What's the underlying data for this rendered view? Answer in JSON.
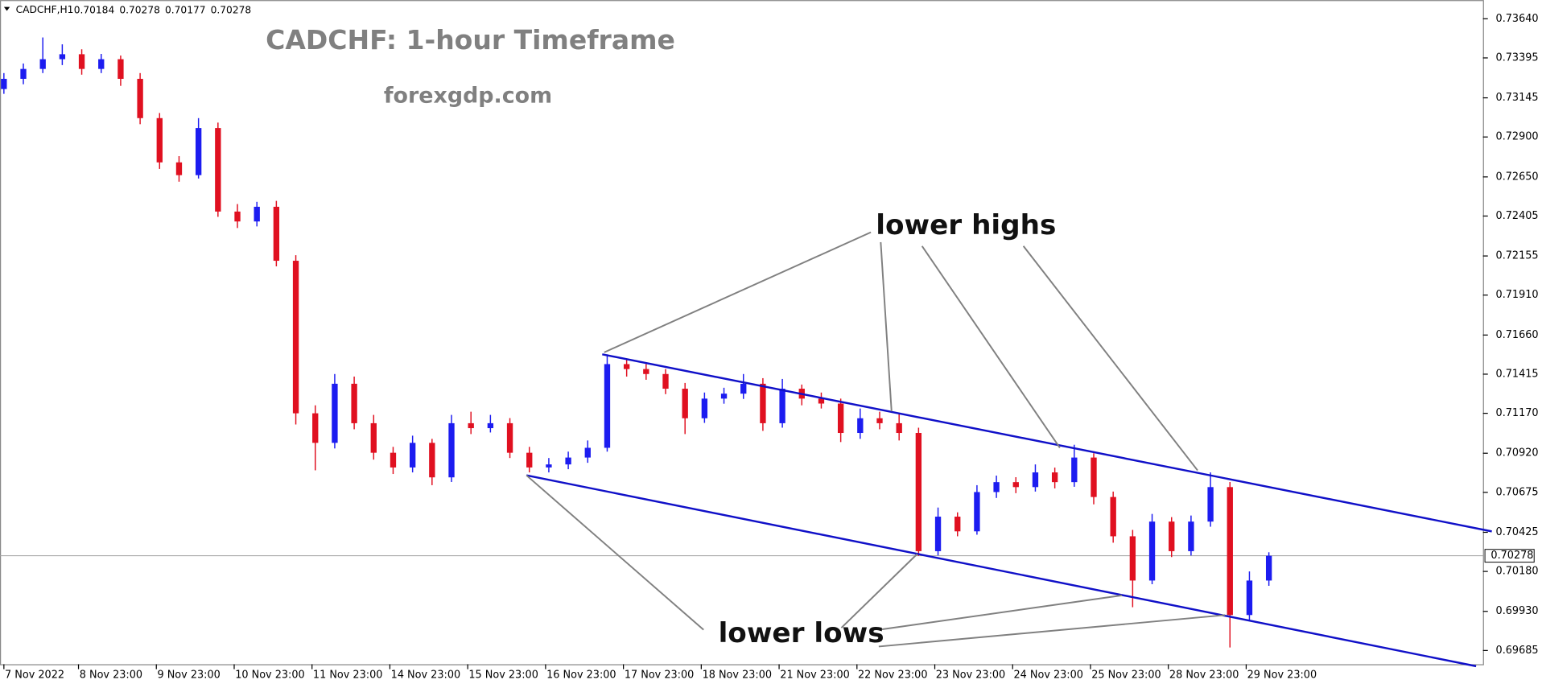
{
  "chart_data": {
    "type": "candlestick",
    "symbol": "CADCHF,H1",
    "header_ohlc": [
      0.70184,
      0.70278,
      0.70177,
      0.70278
    ],
    "title": "CADCHF: 1-hour Timeframe",
    "subtitle": "forexgdp.com",
    "annotations": [
      "lower highs",
      "lower lows"
    ],
    "last_price": 0.70278,
    "up_color": "#1c1cf0",
    "down_color": "#e01020",
    "ylim": [
      0.69599,
      0.73757
    ],
    "yticks": [
      {
        "value": 0.7364,
        "label": "0.73640"
      },
      0.73395,
      0.73145,
      {
        "value": 0.729,
        "label": "0.72900"
      },
      {
        "value": 0.7265,
        "label": "0.72650"
      },
      0.72405,
      0.72155,
      {
        "value": 0.7191,
        "label": "0.71910"
      },
      {
        "value": 0.7166,
        "label": "0.71660"
      },
      0.71415,
      {
        "value": 0.7117,
        "label": "0.71170"
      },
      {
        "value": 0.7092,
        "label": "0.70920"
      },
      0.70675,
      0.70425,
      {
        "value": 0.7018,
        "label": "0.70180"
      },
      {
        "value": 0.6993,
        "label": "0.69930"
      },
      0.69685
    ],
    "xlim": [
      -1.2,
      456
    ],
    "xticks": [
      {
        "value": 0,
        "label": "7 Nov 2022"
      },
      {
        "value": 23,
        "label": "8 Nov 23:00"
      },
      {
        "value": 47,
        "label": "9 Nov 23:00"
      },
      {
        "value": 71,
        "label": "10 Nov 23:00"
      },
      {
        "value": 95,
        "label": "11 Nov 23:00"
      },
      {
        "value": 119,
        "label": "14 Nov 23:00"
      },
      {
        "value": 143,
        "label": "15 Nov 23:00"
      },
      {
        "value": 167,
        "label": "16 Nov 23:00"
      },
      {
        "value": 191,
        "label": "17 Nov 23:00"
      },
      {
        "value": 215,
        "label": "18 Nov 23:00"
      },
      {
        "value": 239,
        "label": "21 Nov 23:00"
      },
      {
        "value": 263,
        "label": "22 Nov 23:00"
      },
      {
        "value": 287,
        "label": "23 Nov 23:00"
      },
      {
        "value": 311,
        "label": "24 Nov 23:00"
      },
      {
        "value": 335,
        "label": "25 Nov 23:00"
      },
      {
        "value": 359,
        "label": "28 Nov 23:00"
      },
      {
        "value": 383,
        "label": "29 Nov 23:00"
      }
    ],
    "x": [
      0,
      6,
      12,
      18,
      24,
      30,
      36,
      42,
      48,
      54,
      60,
      66,
      72,
      78,
      84,
      90,
      96,
      102,
      108,
      114,
      120,
      126,
      132,
      138,
      144,
      150,
      156,
      162,
      168,
      174,
      180,
      186,
      192,
      198,
      204,
      210,
      216,
      222,
      228,
      234,
      240,
      246,
      252,
      258,
      264,
      270,
      276,
      282,
      288,
      294,
      300,
      306,
      312,
      318,
      324,
      330,
      336,
      342,
      348,
      354,
      360,
      366,
      372,
      378,
      384,
      390
    ],
    "open": [
      0.732,
      0.73264,
      0.73326,
      0.73387,
      0.73418,
      0.73326,
      0.73387,
      0.73264,
      0.73018,
      0.72741,
      0.72661,
      0.72956,
      0.72433,
      0.72371,
      0.72463,
      0.72125,
      0.7117,
      0.70985,
      0.71355,
      0.71108,
      0.70923,
      0.70831,
      0.70985,
      0.70769,
      0.71108,
      0.71077,
      0.71108,
      0.70923,
      0.70831,
      0.7085,
      0.70893,
      0.70954,
      0.71478,
      0.71447,
      0.71416,
      0.71324,
      0.71139,
      0.71262,
      0.71293,
      0.71355,
      0.71108,
      0.71324,
      0.71262,
      0.71231,
      0.71047,
      0.71139,
      0.71108,
      0.71047,
      0.70307,
      0.70523,
      0.70431,
      0.70677,
      0.70739,
      0.70708,
      0.708,
      0.70739,
      0.70893,
      0.70646,
      0.704,
      0.70123,
      0.70492,
      0.70307,
      0.70492,
      0.70708,
      0.69907,
      0.70123
    ],
    "high": [
      0.733,
      0.7336,
      0.73523,
      0.7348,
      0.73449,
      0.7342,
      0.7341,
      0.733,
      0.7305,
      0.7278,
      0.73018,
      0.7299,
      0.7248,
      0.72494,
      0.725,
      0.7216,
      0.7122,
      0.71416,
      0.714,
      0.7116,
      0.7096,
      0.7103,
      0.7101,
      0.7116,
      0.7118,
      0.7116,
      0.7114,
      0.7096,
      0.7089,
      0.7093,
      0.71,
      0.71539,
      0.71509,
      0.71478,
      0.71447,
      0.7136,
      0.713,
      0.7133,
      0.71416,
      0.7139,
      0.71385,
      0.7135,
      0.713,
      0.71262,
      0.712,
      0.7118,
      0.7117,
      0.7108,
      0.7058,
      0.7055,
      0.7072,
      0.7078,
      0.7077,
      0.7085,
      0.7083,
      0.70973,
      0.7092,
      0.7068,
      0.7044,
      0.7054,
      0.7052,
      0.7053,
      0.708,
      0.7074,
      0.7018,
      0.703
    ],
    "low": [
      0.7317,
      0.7323,
      0.733,
      0.7335,
      0.7329,
      0.733,
      0.7322,
      0.7298,
      0.727,
      0.7262,
      0.7264,
      0.724,
      0.7233,
      0.7234,
      0.7209,
      0.711,
      0.70813,
      0.7095,
      0.7107,
      0.7088,
      0.7079,
      0.708,
      0.7072,
      0.7074,
      0.7104,
      0.7105,
      0.7089,
      0.708,
      0.708,
      0.7082,
      0.7086,
      0.7093,
      0.714,
      0.7138,
      0.7129,
      0.7104,
      0.7111,
      0.7123,
      0.7126,
      0.7106,
      0.7108,
      0.7122,
      0.712,
      0.7099,
      0.7101,
      0.7107,
      0.71,
      0.70277,
      0.7028,
      0.704,
      0.7041,
      0.7064,
      0.7067,
      0.7068,
      0.707,
      0.7071,
      0.706,
      0.7036,
      0.69956,
      0.701,
      0.7027,
      0.7028,
      0.7046,
      0.69704,
      0.6987,
      0.7009
    ],
    "close": [
      0.73264,
      0.73326,
      0.73387,
      0.73418,
      0.73326,
      0.73387,
      0.73264,
      0.73018,
      0.72741,
      0.72661,
      0.72956,
      0.72433,
      0.72371,
      0.72463,
      0.72125,
      0.7117,
      0.70985,
      0.71355,
      0.71108,
      0.70923,
      0.70831,
      0.70985,
      0.70769,
      0.71108,
      0.71077,
      0.71108,
      0.70923,
      0.70831,
      0.7085,
      0.70893,
      0.70954,
      0.71478,
      0.71447,
      0.71416,
      0.71324,
      0.71139,
      0.71262,
      0.71293,
      0.71355,
      0.71108,
      0.71324,
      0.71262,
      0.71231,
      0.71047,
      0.71139,
      0.71108,
      0.71047,
      0.70307,
      0.70523,
      0.70431,
      0.70677,
      0.70739,
      0.70708,
      0.708,
      0.70739,
      0.70893,
      0.70646,
      0.704,
      0.70123,
      0.70492,
      0.70307,
      0.70492,
      0.70708,
      0.69907,
      0.70123,
      0.70278
    ]
  }
}
